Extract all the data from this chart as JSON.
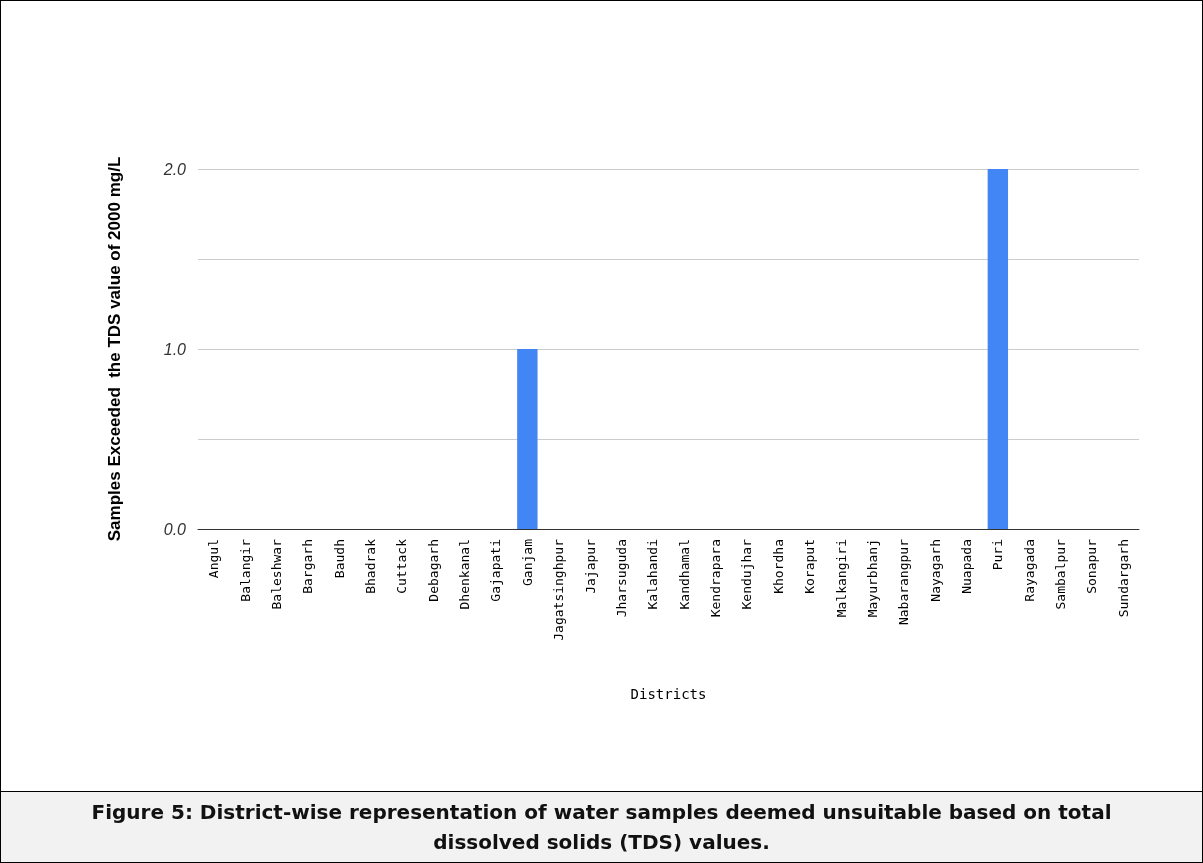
{
  "chart_data": {
    "type": "bar",
    "xlabel": "Districts",
    "ylabel": "Samples Exceeded  the TDS value of 2000 mg/L",
    "categories": [
      "Angul",
      "Balangir",
      "Baleshwar",
      "Bargarh",
      "Baudh",
      "Bhadrak",
      "Cuttack",
      "Debagarh",
      "Dhenkanal",
      "Gajapati",
      "Ganjam",
      "Jagatsinghpur",
      "Jajapur",
      "Jharsuguda",
      "Kalahandi",
      "Kandhamal",
      "Kendrapara",
      "Kendujhar",
      "Khordha",
      "Koraput",
      "Malkangiri",
      "Mayurbhanj",
      "Nabarangpur",
      "Nayagarh",
      "Nuapada",
      "Puri",
      "Rayagada",
      "Sambalpur",
      "Sonapur",
      "Sundargarh"
    ],
    "values": [
      0,
      0,
      0,
      0,
      0,
      0,
      0,
      0,
      0,
      0,
      1,
      0,
      0,
      0,
      0,
      0,
      0,
      0,
      0,
      0,
      0,
      0,
      0,
      0,
      0,
      2,
      0,
      0,
      0,
      0
    ],
    "color": "#4285f4",
    "ylim": [
      0,
      2
    ],
    "yticks": [
      {
        "value": 0,
        "label": "0.0"
      },
      {
        "value": 0.5,
        "label": null
      },
      {
        "value": 1,
        "label": "1.0"
      },
      {
        "value": 1.5,
        "label": null
      },
      {
        "value": 2,
        "label": "2.0"
      }
    ],
    "grid": "y",
    "annotations": [
      "Figure 5: District-wise representation of water samples deemed unsuitable based on total dissolved solids (TDS) values."
    ]
  }
}
